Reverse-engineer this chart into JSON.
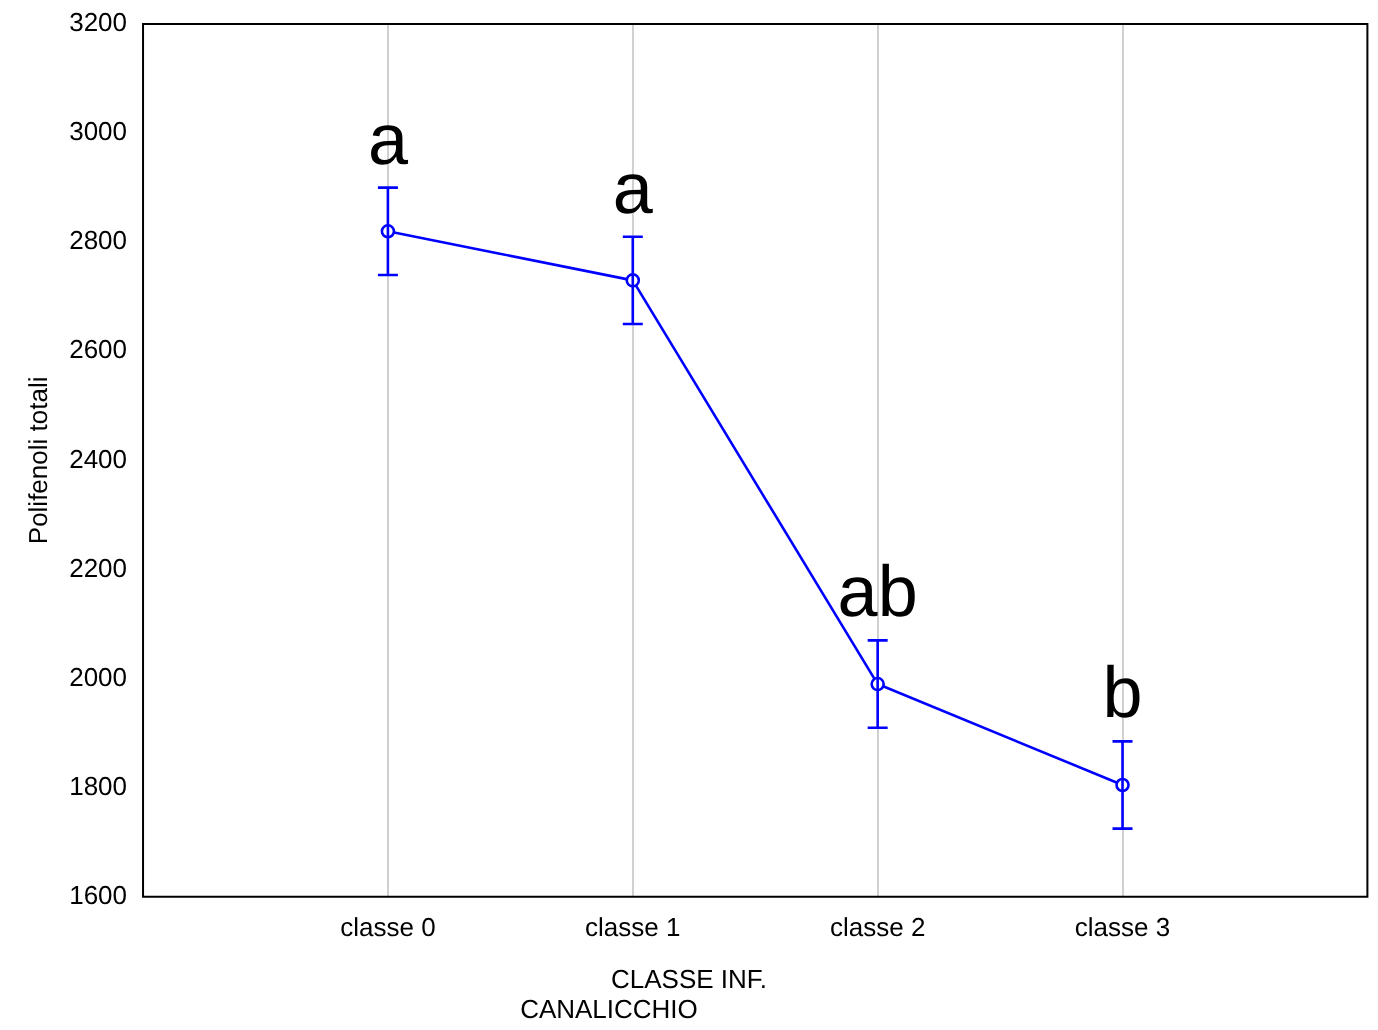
{
  "chart_data": {
    "type": "line",
    "xlabel": "CLASSE INF.\nCANALICCHIO",
    "ylabel": "Polifenoli totali",
    "categories": [
      "classe 0",
      "classe 1",
      "classe 2",
      "classe 3"
    ],
    "series": [
      {
        "color": "#0000ff",
        "values": [
          2820,
          2730,
          1990,
          1805
        ],
        "errors": [
          80,
          80,
          80,
          80
        ]
      }
    ],
    "ylim": [
      1600,
      3200
    ],
    "yticks": [
      1600,
      1800,
      2000,
      2200,
      2400,
      2600,
      2800,
      3000,
      3200
    ],
    "grid": "x",
    "marker": "circle",
    "line_style": "solid",
    "legend": false,
    "annotations": [
      {
        "text": "a",
        "x": "classe 0",
        "y": 2820
      },
      {
        "text": "a",
        "x": "classe 1",
        "y": 2730
      },
      {
        "text": "ab",
        "x": "classe 2",
        "y": 1990
      },
      {
        "text": "b",
        "x": "classe 3",
        "y": 1805
      }
    ]
  }
}
